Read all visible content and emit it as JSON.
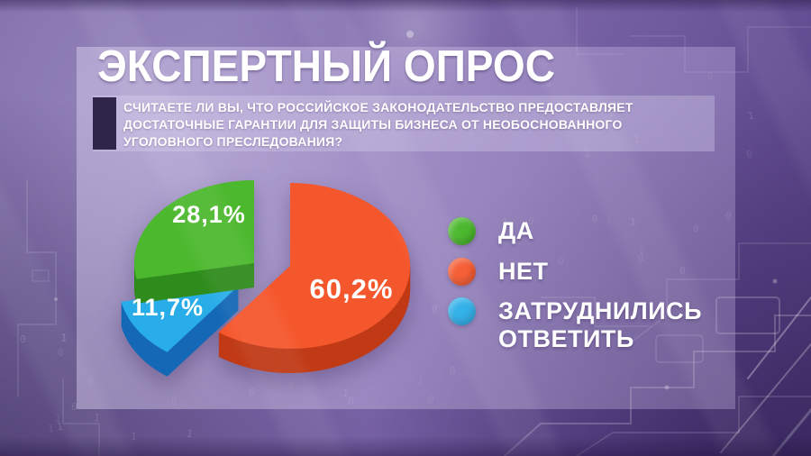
{
  "header": {
    "title": "ЭКСПЕРТНЫЙ ОПРОС"
  },
  "question": {
    "marker_color": "#2f2449",
    "lines": [
      "СЧИТАЕТЕ ЛИ ВЫ, ЧТО РОССИЙСКОЕ ЗАКОНОДАТЕЛЬСТВО ПРЕДОСТАВЛЯЕТ",
      "ДОСТАТОЧНЫЕ ГАРАНТИИ ДЛЯ ЗАЩИТЫ БИЗНЕСА ОТ НЕОБОСНОВАННОГО",
      "УГОЛОВНОГО ПРЕСЛЕДОВАНИЯ?"
    ]
  },
  "chart_data": {
    "type": "pie",
    "style": "3d-exploded",
    "title": "ЭКСПЕРТНЫЙ ОПРОС",
    "unit": "percent",
    "direction": "clockwise",
    "start_angle_deg": 0,
    "legend_position": "right",
    "slices": [
      {
        "label": "НЕТ",
        "value": 60.2,
        "display": "60,2%",
        "color": "#f5572d",
        "side_color": "#c03a16"
      },
      {
        "label": "ЗАТРУДНИЛИСЬ ОТВЕТИТЬ",
        "value": 11.7,
        "display": "11,7%",
        "color": "#29ade8",
        "side_color": "#1468b6"
      },
      {
        "label": "ДА",
        "value": 28.1,
        "display": "28,1%",
        "color": "#4cb82e",
        "side_color": "#2f8c1c"
      }
    ]
  },
  "legend": {
    "items": [
      {
        "label": "ДА",
        "color": "#4cb82e"
      },
      {
        "label": "НЕТ",
        "color": "#f5572d"
      },
      {
        "label": "ЗАТРУДНИЛИСЬ ОТВЕТИТЬ",
        "color": "#29ade8"
      }
    ]
  },
  "colors": {
    "background_purple": "#7b66a8",
    "panel_overlay": "#cdbfe6",
    "text": "#ffffff"
  }
}
